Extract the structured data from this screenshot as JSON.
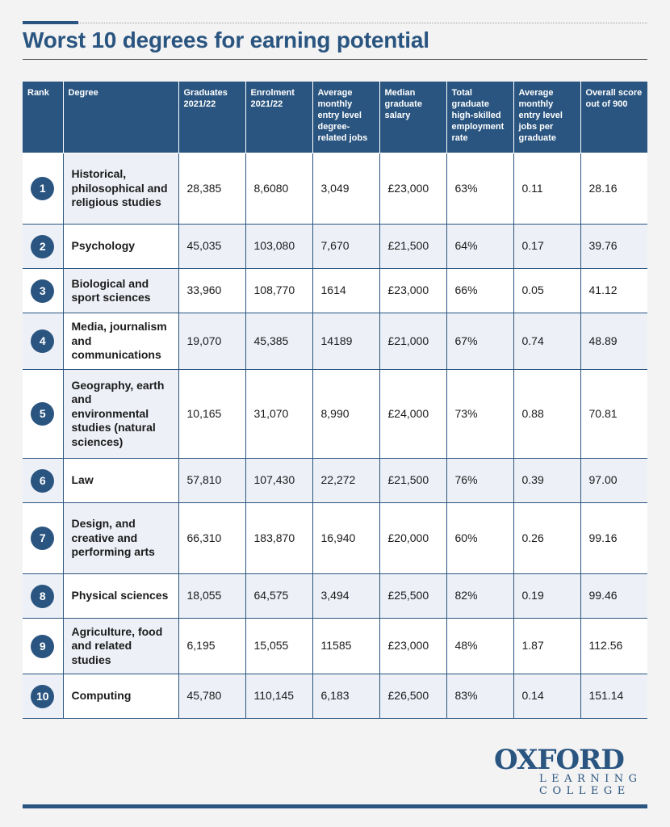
{
  "title": "Worst 10 degrees for earning potential",
  "colors": {
    "accent": "#2a5580",
    "row_tint": "#edf0f7",
    "background": "#f3f3f3"
  },
  "table": {
    "headers": [
      "Rank",
      "Degree",
      "Graduates 2021/22",
      "Enrolment 2021/22",
      "Average monthly entry level degree-related jobs",
      "Median graduate salary",
      "Total graduate high-skilled employment rate",
      "Average monthly entry level jobs per graduate",
      "Overall score out of 900"
    ],
    "rows": [
      {
        "rank": "1",
        "degree": "Historical, philosophical and religious studies",
        "graduates": "28,385",
        "enrolment": "8,6080",
        "jobs": "3,049",
        "salary": "£23,000",
        "employment_rate": "63%",
        "jobs_per_grad": "0.11",
        "score": "28.16"
      },
      {
        "rank": "2",
        "degree": "Psychology",
        "graduates": "45,035",
        "enrolment": "103,080",
        "jobs": "7,670",
        "salary": "£21,500",
        "employment_rate": "64%",
        "jobs_per_grad": "0.17",
        "score": "39.76"
      },
      {
        "rank": "3",
        "degree": "Biological and sport sciences",
        "graduates": "33,960",
        "enrolment": "108,770",
        "jobs": "1614",
        "salary": "£23,000",
        "employment_rate": "66%",
        "jobs_per_grad": "0.05",
        "score": "41.12"
      },
      {
        "rank": "4",
        "degree": "Media, journalism and communications",
        "graduates": "19,070",
        "enrolment": "45,385",
        "jobs": "14189",
        "salary": "£21,000",
        "employment_rate": "67%",
        "jobs_per_grad": "0.74",
        "score": "48.89"
      },
      {
        "rank": "5",
        "degree": "Geography, earth and environmental studies (natural sciences)",
        "graduates": "10,165",
        "enrolment": "31,070",
        "jobs": "8,990",
        "salary": "£24,000",
        "employment_rate": "73%",
        "jobs_per_grad": "0.88",
        "score": "70.81"
      },
      {
        "rank": "6",
        "degree": "Law",
        "graduates": "57,810",
        "enrolment": "107,430",
        "jobs": "22,272",
        "salary": "£21,500",
        "employment_rate": "76%",
        "jobs_per_grad": "0.39",
        "score": "97.00"
      },
      {
        "rank": "7",
        "degree": "Design, and creative and performing arts",
        "graduates": "66,310",
        "enrolment": "183,870",
        "jobs": "16,940",
        "salary": "£20,000",
        "employment_rate": "60%",
        "jobs_per_grad": "0.26",
        "score": "99.16"
      },
      {
        "rank": "8",
        "degree": "Physical sciences",
        "graduates": "18,055",
        "enrolment": "64,575",
        "jobs": "3,494",
        "salary": "£25,500",
        "employment_rate": "82%",
        "jobs_per_grad": "0.19",
        "score": "99.46"
      },
      {
        "rank": "9",
        "degree": "Agriculture, food and related studies",
        "graduates": "6,195",
        "enrolment": "15,055",
        "jobs": "11585",
        "salary": "£23,000",
        "employment_rate": "48%",
        "jobs_per_grad": "1.87",
        "score": "112.56"
      },
      {
        "rank": "10",
        "degree": "Computing",
        "graduates": "45,780",
        "enrolment": "110,145",
        "jobs": "6,183",
        "salary": "£26,500",
        "employment_rate": "83%",
        "jobs_per_grad": "0.14",
        "score": "151.14"
      }
    ]
  },
  "logo": {
    "line1": "OXFORD",
    "line2": "LEARNING",
    "line3": "COLLEGE"
  }
}
